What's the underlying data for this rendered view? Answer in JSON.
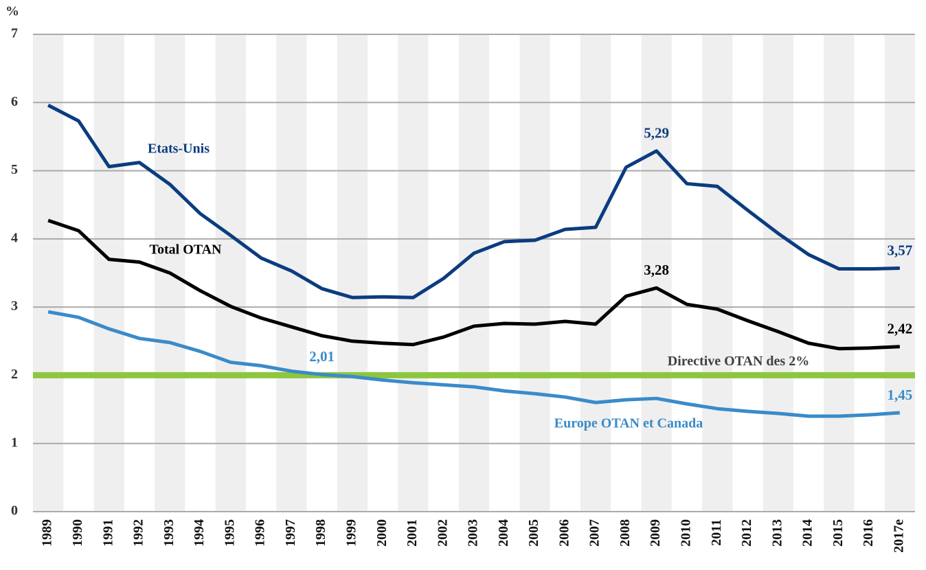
{
  "chart_data": {
    "type": "line",
    "y_unit": "%",
    "categories": [
      "1989",
      "1990",
      "1991",
      "1992",
      "1993",
      "1994",
      "1995",
      "1996",
      "1997",
      "1998",
      "1999",
      "2000",
      "2001",
      "2002",
      "2003",
      "2004",
      "2005",
      "2006",
      "2007",
      "2008",
      "2009",
      "2010",
      "2011",
      "2012",
      "2013",
      "2014",
      "2015",
      "2016",
      "2017e"
    ],
    "series": [
      {
        "name": "Etats-Unis",
        "color": "#0b3c80",
        "values": [
          5.96,
          5.73,
          5.06,
          5.12,
          4.8,
          4.37,
          4.05,
          3.72,
          3.53,
          3.27,
          3.14,
          3.15,
          3.14,
          3.42,
          3.79,
          3.96,
          3.98,
          4.14,
          4.17,
          5.05,
          5.29,
          4.81,
          4.77,
          4.42,
          4.08,
          3.77,
          3.56,
          3.56,
          3.57
        ],
        "value_labels": [
          null,
          null,
          null,
          null,
          null,
          null,
          null,
          null,
          null,
          null,
          null,
          null,
          null,
          null,
          null,
          null,
          null,
          null,
          null,
          null,
          "5,29",
          null,
          null,
          null,
          null,
          null,
          null,
          null,
          "3,57"
        ]
      },
      {
        "name": "Total OTAN",
        "color": "#000000",
        "values": [
          4.27,
          4.12,
          3.7,
          3.66,
          3.5,
          3.24,
          3.01,
          2.84,
          2.71,
          2.58,
          2.5,
          2.47,
          2.45,
          2.56,
          2.72,
          2.76,
          2.75,
          2.79,
          2.75,
          3.16,
          3.28,
          3.04,
          2.97,
          2.8,
          2.64,
          2.47,
          2.39,
          2.4,
          2.42
        ],
        "value_labels": [
          null,
          null,
          null,
          null,
          null,
          null,
          null,
          null,
          null,
          null,
          null,
          null,
          null,
          null,
          null,
          null,
          null,
          null,
          null,
          null,
          "3,28",
          null,
          null,
          null,
          null,
          null,
          null,
          null,
          "2,42"
        ]
      },
      {
        "name": "Europe OTAN et Canada",
        "color": "#3a8bc9",
        "values": [
          2.93,
          2.85,
          2.68,
          2.54,
          2.48,
          2.35,
          2.19,
          2.14,
          2.06,
          2.01,
          1.98,
          1.93,
          1.89,
          1.86,
          1.83,
          1.77,
          1.73,
          1.68,
          1.6,
          1.64,
          1.66,
          1.58,
          1.51,
          1.47,
          1.44,
          1.4,
          1.4,
          1.42,
          1.45
        ],
        "value_labels": [
          null,
          null,
          null,
          null,
          null,
          null,
          null,
          null,
          null,
          "2,01",
          null,
          null,
          null,
          null,
          null,
          null,
          null,
          null,
          null,
          null,
          null,
          null,
          null,
          null,
          null,
          null,
          null,
          null,
          "1,45"
        ]
      }
    ],
    "reference_line": {
      "value": 2,
      "label": "Directive OTAN des 2%",
      "color": "#8dc63f"
    },
    "ylim": [
      0,
      7
    ],
    "yticks": [
      0,
      1,
      2,
      3,
      4,
      5,
      6,
      7
    ],
    "grid": true
  }
}
